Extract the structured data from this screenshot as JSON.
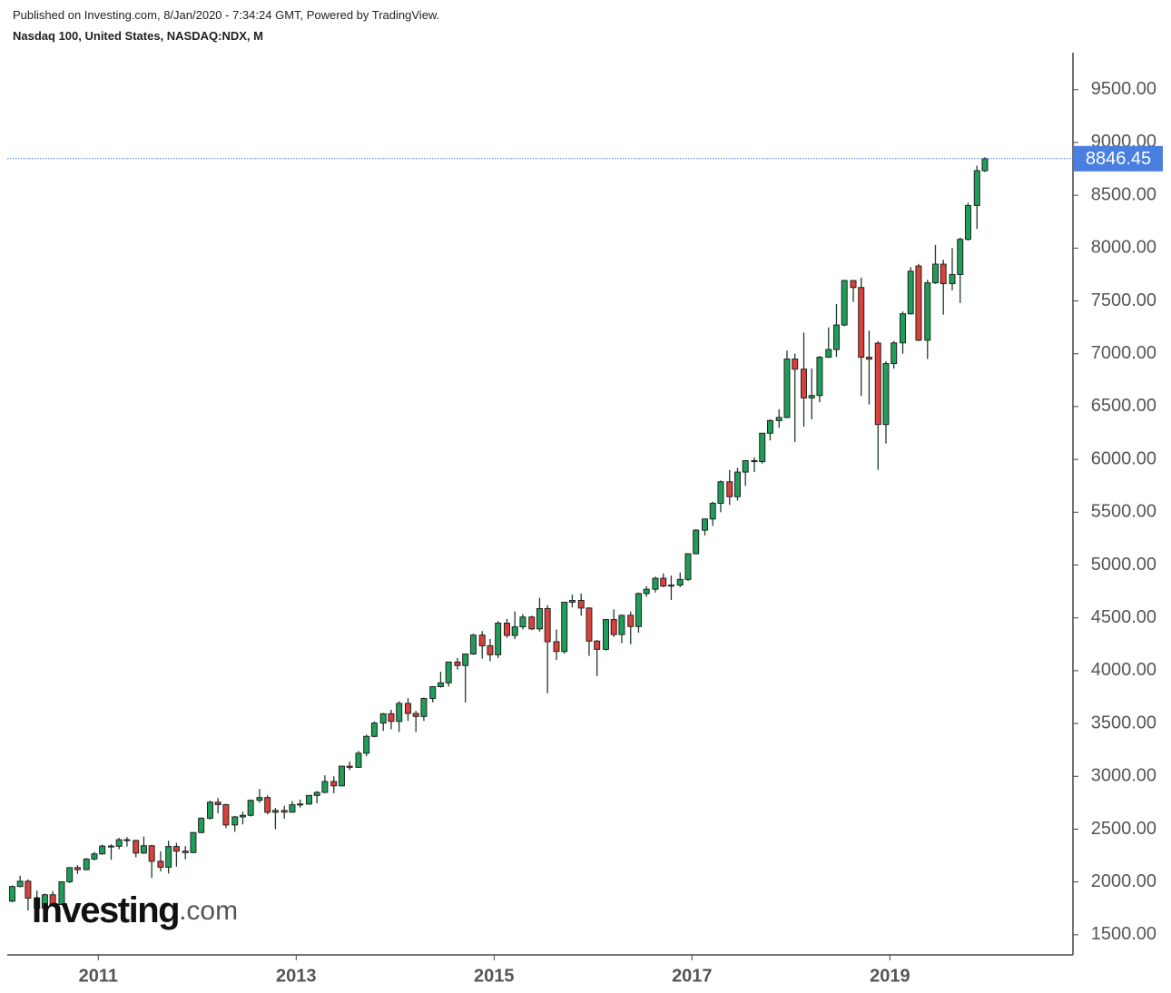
{
  "header": {
    "published": "Published on Investing.com, 8/Jan/2020 - 7:34:24 GMT, Powered by TradingView.",
    "symbol": "Nasdaq 100, United States, NASDAQ:NDX, M"
  },
  "chart_data": {
    "type": "candlestick",
    "watermark": "Investing",
    "watermark_suffix": ".com",
    "up_color": "#1f9e5a",
    "down_color": "#d9413a",
    "x": [
      2010.13,
      2010.21,
      2010.29,
      2010.38,
      2010.46,
      2010.54,
      2010.63,
      2010.71,
      2010.79,
      2010.88,
      2010.96,
      2011.04,
      2011.13,
      2011.21,
      2011.29,
      2011.38,
      2011.46,
      2011.54,
      2011.63,
      2011.71,
      2011.79,
      2011.88,
      2011.96,
      2012.04,
      2012.13,
      2012.21,
      2012.29,
      2012.38,
      2012.46,
      2012.54,
      2012.63,
      2012.71,
      2012.79,
      2012.88,
      2012.96,
      2013.04,
      2013.13,
      2013.21,
      2013.29,
      2013.38,
      2013.46,
      2013.54,
      2013.63,
      2013.71,
      2013.79,
      2013.88,
      2013.96,
      2014.04,
      2014.13,
      2014.21,
      2014.29,
      2014.38,
      2014.46,
      2014.54,
      2014.63,
      2014.71,
      2014.79,
      2014.88,
      2014.96,
      2015.04,
      2015.13,
      2015.21,
      2015.29,
      2015.38,
      2015.46,
      2015.54,
      2015.63,
      2015.71,
      2015.79,
      2015.88,
      2015.96,
      2016.04,
      2016.13,
      2016.21,
      2016.29,
      2016.38,
      2016.46,
      2016.54,
      2016.63,
      2016.71,
      2016.79,
      2016.88,
      2016.96,
      2017.04,
      2017.13,
      2017.21,
      2017.29,
      2017.38,
      2017.46,
      2017.54,
      2017.63,
      2017.71,
      2017.79,
      2017.88,
      2017.96,
      2018.04,
      2018.13,
      2018.21,
      2018.29,
      2018.38,
      2018.46,
      2018.54,
      2018.63,
      2018.71,
      2018.79,
      2018.88,
      2018.96,
      2019.04,
      2019.13,
      2019.21,
      2019.29,
      2019.38,
      2019.46,
      2019.54,
      2019.63,
      2019.71,
      2019.79,
      2019.88,
      2019.96
    ],
    "open": [
      1819,
      1957,
      2007,
      1847,
      1752,
      1879,
      1787,
      2002,
      2136,
      2117,
      2217,
      2266,
      2340,
      2338,
      2400,
      2393,
      2274,
      2343,
      2196,
      2140,
      2336,
      2292,
      2278,
      2468,
      2604,
      2755,
      2732,
      2540,
      2616,
      2631,
      2773,
      2799,
      2660,
      2677,
      2661,
      2731,
      2738,
      2819,
      2848,
      2951,
      2910,
      3096,
      3085,
      3219,
      3378,
      3504,
      3592,
      3520,
      3690,
      3595,
      3567,
      3737,
      3849,
      3885,
      4082,
      4049,
      4158,
      4337,
      4236,
      4151,
      4450,
      4334,
      4415,
      4508,
      4396,
      4588,
      4274,
      4182,
      4648,
      4665,
      4593,
      4280,
      4202,
      4484,
      4342,
      4524,
      4418,
      4730,
      4771,
      4875,
      4801,
      4810,
      4864,
      5107,
      5330,
      5436,
      5584,
      5788,
      5647,
      5880,
      5988,
      5979,
      6248,
      6367,
      6397,
      6950,
      6854,
      6582,
      6605,
      6967,
      7040,
      7272,
      7693,
      7627,
      6967,
      7100,
      6330,
      6907,
      7103,
      7378,
      7830,
      7128,
      7671,
      7848,
      7663,
      7750,
      8083,
      8403,
      8733
    ],
    "high": [
      1967,
      2059,
      2024,
      1918,
      1890,
      1914,
      2006,
      2140,
      2160,
      2227,
      2285,
      2353,
      2356,
      2418,
      2425,
      2400,
      2430,
      2350,
      2290,
      2390,
      2370,
      2340,
      2470,
      2610,
      2770,
      2795,
      2740,
      2625,
      2665,
      2780,
      2880,
      2820,
      2700,
      2720,
      2765,
      2780,
      2820,
      2860,
      3010,
      3000,
      3100,
      3140,
      3240,
      3395,
      3520,
      3600,
      3630,
      3710,
      3740,
      3620,
      3745,
      3850,
      3990,
      4085,
      4120,
      4160,
      4350,
      4375,
      4300,
      4470,
      4490,
      4560,
      4535,
      4520,
      4690,
      4620,
      4390,
      4650,
      4720,
      4730,
      4600,
      4290,
      4490,
      4580,
      4530,
      4560,
      4740,
      4800,
      4890,
      4920,
      4900,
      4930,
      5110,
      5340,
      5440,
      5600,
      5800,
      5900,
      5920,
      5990,
      6020,
      6250,
      6380,
      6475,
      7030,
      7000,
      7200,
      6860,
      6980,
      7250,
      7470,
      7700,
      7695,
      7720,
      7220,
      7120,
      6930,
      7120,
      7400,
      7820,
      7850,
      7700,
      8030,
      7890,
      8000,
      8100,
      8430,
      8780,
      8860
    ],
    "low": [
      1807,
      1950,
      1730,
      1740,
      1725,
      1774,
      1780,
      1990,
      2076,
      2110,
      2205,
      2260,
      2210,
      2310,
      2335,
      2234,
      2265,
      2038,
      2100,
      2080,
      2145,
      2215,
      2275,
      2460,
      2590,
      2650,
      2510,
      2475,
      2545,
      2620,
      2750,
      2640,
      2500,
      2600,
      2655,
      2705,
      2730,
      2745,
      2840,
      2840,
      2905,
      3060,
      3080,
      3190,
      3370,
      3430,
      3445,
      3420,
      3525,
      3420,
      3525,
      3700,
      3840,
      3850,
      4010,
      3700,
      4150,
      4115,
      4090,
      4120,
      4310,
      4300,
      4390,
      4385,
      4370,
      3787,
      4100,
      4160,
      4600,
      4520,
      4140,
      3948,
      4190,
      4320,
      4260,
      4250,
      4360,
      4700,
      4740,
      4790,
      4670,
      4790,
      4850,
      5100,
      5280,
      5370,
      5500,
      5570,
      5610,
      5750,
      5880,
      5960,
      6180,
      6300,
      6390,
      6165,
      6310,
      6380,
      6540,
      6960,
      6970,
      7260,
      7490,
      6600,
      6520,
      5900,
      6150,
      6860,
      7000,
      7370,
      7120,
      6950,
      7660,
      7370,
      7600,
      7480,
      8070,
      8180,
      8720
    ],
    "close": [
      1957,
      2007,
      1847,
      1752,
      1879,
      1787,
      2002,
      2136,
      2117,
      2217,
      2266,
      2340,
      2338,
      2400,
      2393,
      2274,
      2343,
      2196,
      2140,
      2336,
      2292,
      2278,
      2468,
      2604,
      2755,
      2732,
      2540,
      2616,
      2631,
      2773,
      2799,
      2660,
      2677,
      2661,
      2731,
      2738,
      2819,
      2848,
      2951,
      2910,
      3096,
      3085,
      3219,
      3378,
      3504,
      3592,
      3520,
      3690,
      3595,
      3567,
      3737,
      3849,
      3885,
      4082,
      4049,
      4158,
      4337,
      4236,
      4151,
      4450,
      4334,
      4415,
      4508,
      4396,
      4588,
      4274,
      4182,
      4648,
      4665,
      4593,
      4280,
      4202,
      4484,
      4342,
      4524,
      4418,
      4730,
      4771,
      4875,
      4801,
      4810,
      4864,
      5107,
      5330,
      5436,
      5584,
      5788,
      5647,
      5880,
      5988,
      5979,
      6248,
      6367,
      6397,
      6950,
      6854,
      6582,
      6605,
      6967,
      7040,
      7272,
      7693,
      7627,
      6967,
      6949,
      6330,
      6907,
      7103,
      7378,
      7781,
      7128,
      7671,
      7848,
      7663,
      7750,
      8083,
      8403,
      8733,
      8846.45
    ],
    "last_price": 8846.45,
    "last_price_color": "#4a7fe0",
    "xlim": [
      2010.08,
      2020.85
    ],
    "xticks": [
      2011,
      2013,
      2015,
      2017,
      2019
    ],
    "ylim": [
      1310,
      9850
    ],
    "yticks": [
      {
        "value": 1500,
        "label": "1500.00"
      },
      {
        "value": 2000,
        "label": "2000.00"
      },
      {
        "value": 2500,
        "label": "2500.00"
      },
      {
        "value": 3000,
        "label": "3000.00"
      },
      {
        "value": 3500,
        "label": "3500.00"
      },
      {
        "value": 4000,
        "label": "4000.00"
      },
      {
        "value": 4500,
        "label": "4500.00"
      },
      {
        "value": 5000,
        "label": "5000.00"
      },
      {
        "value": 5500,
        "label": "5500.00"
      },
      {
        "value": 6000,
        "label": "6000.00"
      },
      {
        "value": 6500,
        "label": "6500.00"
      },
      {
        "value": 7000,
        "label": "7000.00"
      },
      {
        "value": 7500,
        "label": "7500.00"
      },
      {
        "value": 8000,
        "label": "8000.00"
      },
      {
        "value": 8500,
        "label": "8500.00"
      },
      {
        "value": 9000,
        "label": "9000.00"
      },
      {
        "value": 9500,
        "label": "9500.00"
      }
    ],
    "grid": false
  }
}
